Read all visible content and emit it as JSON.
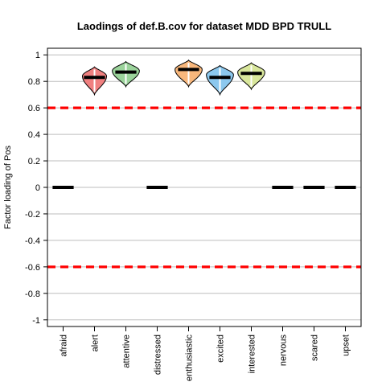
{
  "chart_data": {
    "type": "violin",
    "title": "Laodings of def.B.cov for dataset MDD BPD TRULL",
    "xlabel": "",
    "ylabel": "Factor loading of Pos",
    "ylim": [
      -1.05,
      1.05
    ],
    "yticks": [
      1,
      0.8,
      0.6,
      0.4,
      0.2,
      0,
      -0.2,
      -0.4,
      -0.6,
      -0.8,
      -1
    ],
    "ytick_labels": [
      "1",
      "0.8",
      "0.6",
      "0.4",
      "0.2",
      "0",
      "-0.2",
      "-0.4",
      "-0.6",
      "-0.8",
      "-1"
    ],
    "grid": true,
    "reference_lines": [
      0.6,
      -0.6
    ],
    "reference_color": "#ff0000",
    "categories": [
      "afraid",
      "alert",
      "attentive",
      "distressed",
      "enthusiastic",
      "excited",
      "interested",
      "nervous",
      "scared",
      "upset"
    ],
    "series": [
      {
        "category": "afraid",
        "median": 0,
        "violin": null
      },
      {
        "category": "alert",
        "median": 0.83,
        "color": "#f08080",
        "violin": {
          "min": 0.7,
          "max": 0.91,
          "mode": 0.84,
          "maxwidth": 0.4
        }
      },
      {
        "category": "attentive",
        "median": 0.87,
        "color": "#9bd39b",
        "violin": {
          "min": 0.76,
          "max": 0.95,
          "mode": 0.88,
          "maxwidth": 0.45
        }
      },
      {
        "category": "distressed",
        "median": 0,
        "violin": null
      },
      {
        "category": "enthusiastic",
        "median": 0.89,
        "color": "#f8b77c",
        "violin": {
          "min": 0.76,
          "max": 0.96,
          "mode": 0.89,
          "maxwidth": 0.45
        }
      },
      {
        "category": "excited",
        "median": 0.83,
        "color": "#8cc8ee",
        "violin": {
          "min": 0.7,
          "max": 0.92,
          "mode": 0.85,
          "maxwidth": 0.45
        }
      },
      {
        "category": "interested",
        "median": 0.86,
        "color": "#d9e79c",
        "violin": {
          "min": 0.74,
          "max": 0.94,
          "mode": 0.87,
          "maxwidth": 0.45
        }
      },
      {
        "category": "nervous",
        "median": 0,
        "violin": null
      },
      {
        "category": "scared",
        "median": 0,
        "violin": null
      },
      {
        "category": "upset",
        "median": 0,
        "violin": null
      }
    ]
  }
}
